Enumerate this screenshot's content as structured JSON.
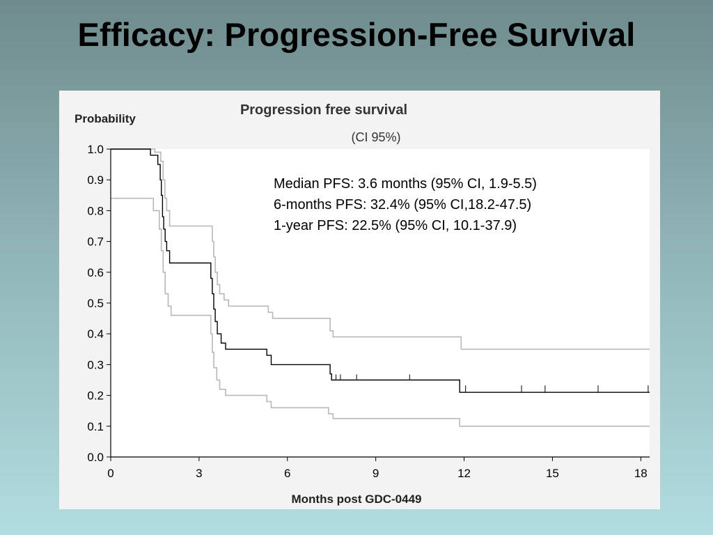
{
  "slide": {
    "title": "Efficacy: Progression-Free Survival"
  },
  "colors": {
    "estimate": "#000000",
    "ci_bounds": "#b8b8b8",
    "panel_background": "#f3f3f3"
  },
  "chart_data": {
    "type": "line",
    "title": "Progression free survival",
    "subtitle": "(CI 95%)",
    "xlabel": "Months post GDC-0449",
    "ylabel": "Probability",
    "xlim": [
      0,
      18.3
    ],
    "ylim": [
      0,
      1.0
    ],
    "xticks": [
      0,
      3,
      6,
      9,
      12,
      15,
      18
    ],
    "yticks": [
      "0.0",
      "0.1",
      "0.2",
      "0.3",
      "0.4",
      "0.5",
      "0.6",
      "0.7",
      "0.8",
      "0.9",
      "1.0"
    ],
    "annotations": [
      "Median PFS: 3.6 months (95% CI, 1.9-5.5)",
      "6-months PFS: 32.4% (95% CI,18.2-47.5)",
      "1-year PFS: 22.5%  (95% CI, 10.1-37.9)"
    ],
    "series": [
      {
        "role": "estimate",
        "step": true,
        "points": [
          [
            0,
            1.0
          ],
          [
            1.35,
            1.0
          ],
          [
            1.35,
            0.98
          ],
          [
            1.6,
            0.98
          ],
          [
            1.6,
            0.95
          ],
          [
            1.68,
            0.95
          ],
          [
            1.68,
            0.9
          ],
          [
            1.72,
            0.9
          ],
          [
            1.72,
            0.85
          ],
          [
            1.76,
            0.85
          ],
          [
            1.76,
            0.78
          ],
          [
            1.8,
            0.78
          ],
          [
            1.8,
            0.74
          ],
          [
            1.85,
            0.74
          ],
          [
            1.85,
            0.7
          ],
          [
            1.9,
            0.7
          ],
          [
            1.9,
            0.67
          ],
          [
            2.0,
            0.67
          ],
          [
            2.0,
            0.63
          ],
          [
            3.4,
            0.63
          ],
          [
            3.4,
            0.58
          ],
          [
            3.45,
            0.58
          ],
          [
            3.45,
            0.53
          ],
          [
            3.5,
            0.53
          ],
          [
            3.5,
            0.48
          ],
          [
            3.55,
            0.48
          ],
          [
            3.55,
            0.44
          ],
          [
            3.62,
            0.44
          ],
          [
            3.62,
            0.4
          ],
          [
            3.75,
            0.4
          ],
          [
            3.75,
            0.37
          ],
          [
            3.9,
            0.37
          ],
          [
            3.9,
            0.35
          ],
          [
            5.3,
            0.35
          ],
          [
            5.3,
            0.33
          ],
          [
            5.45,
            0.33
          ],
          [
            5.45,
            0.3
          ],
          [
            7.45,
            0.3
          ],
          [
            7.45,
            0.27
          ],
          [
            7.5,
            0.27
          ],
          [
            7.5,
            0.25
          ],
          [
            11.85,
            0.25
          ],
          [
            11.85,
            0.21
          ],
          [
            18.3,
            0.21
          ]
        ]
      },
      {
        "role": "upper",
        "step": true,
        "points": [
          [
            0,
            1.0
          ],
          [
            1.5,
            1.0
          ],
          [
            1.5,
            0.99
          ],
          [
            1.7,
            0.99
          ],
          [
            1.7,
            0.96
          ],
          [
            1.78,
            0.96
          ],
          [
            1.78,
            0.9
          ],
          [
            1.84,
            0.9
          ],
          [
            1.84,
            0.84
          ],
          [
            1.9,
            0.84
          ],
          [
            1.9,
            0.8
          ],
          [
            2.0,
            0.8
          ],
          [
            2.0,
            0.75
          ],
          [
            3.45,
            0.75
          ],
          [
            3.45,
            0.7
          ],
          [
            3.5,
            0.7
          ],
          [
            3.5,
            0.65
          ],
          [
            3.55,
            0.65
          ],
          [
            3.55,
            0.6
          ],
          [
            3.62,
            0.6
          ],
          [
            3.62,
            0.56
          ],
          [
            3.7,
            0.56
          ],
          [
            3.7,
            0.53
          ],
          [
            3.85,
            0.53
          ],
          [
            3.85,
            0.51
          ],
          [
            4.0,
            0.51
          ],
          [
            4.0,
            0.49
          ],
          [
            5.35,
            0.49
          ],
          [
            5.35,
            0.47
          ],
          [
            5.5,
            0.47
          ],
          [
            5.5,
            0.45
          ],
          [
            7.45,
            0.45
          ],
          [
            7.45,
            0.41
          ],
          [
            7.55,
            0.41
          ],
          [
            7.55,
            0.39
          ],
          [
            11.9,
            0.39
          ],
          [
            11.9,
            0.35
          ],
          [
            18.3,
            0.35
          ]
        ]
      },
      {
        "role": "lower",
        "step": true,
        "points": [
          [
            0,
            0.84
          ],
          [
            1.45,
            0.84
          ],
          [
            1.45,
            0.8
          ],
          [
            1.65,
            0.8
          ],
          [
            1.65,
            0.74
          ],
          [
            1.72,
            0.74
          ],
          [
            1.72,
            0.67
          ],
          [
            1.78,
            0.67
          ],
          [
            1.78,
            0.6
          ],
          [
            1.85,
            0.6
          ],
          [
            1.85,
            0.53
          ],
          [
            1.95,
            0.53
          ],
          [
            1.95,
            0.49
          ],
          [
            2.05,
            0.49
          ],
          [
            2.05,
            0.46
          ],
          [
            3.4,
            0.46
          ],
          [
            3.4,
            0.4
          ],
          [
            3.45,
            0.4
          ],
          [
            3.45,
            0.34
          ],
          [
            3.5,
            0.34
          ],
          [
            3.5,
            0.29
          ],
          [
            3.6,
            0.29
          ],
          [
            3.6,
            0.25
          ],
          [
            3.7,
            0.25
          ],
          [
            3.7,
            0.22
          ],
          [
            3.9,
            0.22
          ],
          [
            3.9,
            0.2
          ],
          [
            5.3,
            0.2
          ],
          [
            5.3,
            0.18
          ],
          [
            5.45,
            0.18
          ],
          [
            5.45,
            0.16
          ],
          [
            7.4,
            0.16
          ],
          [
            7.4,
            0.14
          ],
          [
            7.55,
            0.14
          ],
          [
            7.55,
            0.125
          ],
          [
            11.85,
            0.125
          ],
          [
            11.85,
            0.1
          ],
          [
            18.3,
            0.1
          ]
        ]
      }
    ],
    "censor_marks": {
      "y_values": [
        0.25,
        0.21
      ],
      "x_at_025": [
        7.65,
        7.8,
        8.35,
        10.15
      ],
      "x_at_021": [
        12.05,
        13.95,
        14.75,
        16.55,
        18.25
      ]
    }
  }
}
